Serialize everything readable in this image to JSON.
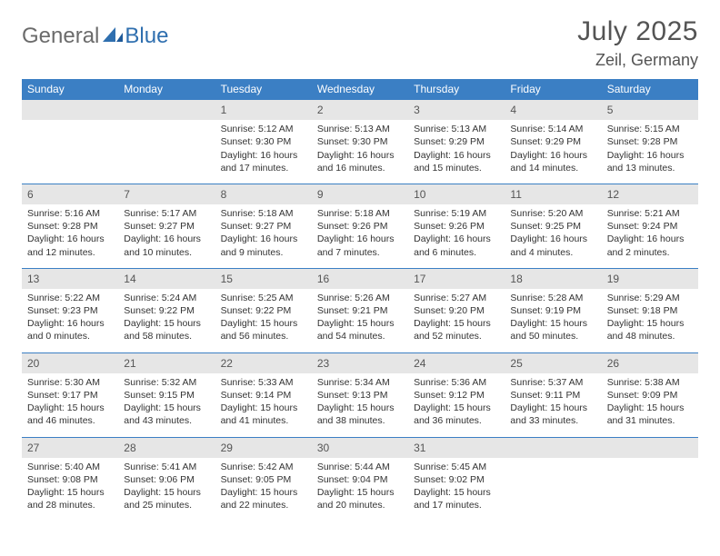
{
  "logo": {
    "text1": "General",
    "text2": "Blue"
  },
  "title": "July 2025",
  "location": "Zeil, Germany",
  "colors": {
    "header_bg": "#3b7fc4",
    "header_text": "#ffffff",
    "daynum_bg": "#e6e6e6",
    "border": "#3b7fc4",
    "logo_gray": "#6b6b6b",
    "logo_blue": "#2f6faf",
    "title_color": "#545454"
  },
  "day_headers": [
    "Sunday",
    "Monday",
    "Tuesday",
    "Wednesday",
    "Thursday",
    "Friday",
    "Saturday"
  ],
  "weeks": [
    [
      {
        "n": "",
        "sr": "",
        "ss": "",
        "dl": ""
      },
      {
        "n": "",
        "sr": "",
        "ss": "",
        "dl": ""
      },
      {
        "n": "1",
        "sr": "Sunrise: 5:12 AM",
        "ss": "Sunset: 9:30 PM",
        "dl": "Daylight: 16 hours and 17 minutes."
      },
      {
        "n": "2",
        "sr": "Sunrise: 5:13 AM",
        "ss": "Sunset: 9:30 PM",
        "dl": "Daylight: 16 hours and 16 minutes."
      },
      {
        "n": "3",
        "sr": "Sunrise: 5:13 AM",
        "ss": "Sunset: 9:29 PM",
        "dl": "Daylight: 16 hours and 15 minutes."
      },
      {
        "n": "4",
        "sr": "Sunrise: 5:14 AM",
        "ss": "Sunset: 9:29 PM",
        "dl": "Daylight: 16 hours and 14 minutes."
      },
      {
        "n": "5",
        "sr": "Sunrise: 5:15 AM",
        "ss": "Sunset: 9:28 PM",
        "dl": "Daylight: 16 hours and 13 minutes."
      }
    ],
    [
      {
        "n": "6",
        "sr": "Sunrise: 5:16 AM",
        "ss": "Sunset: 9:28 PM",
        "dl": "Daylight: 16 hours and 12 minutes."
      },
      {
        "n": "7",
        "sr": "Sunrise: 5:17 AM",
        "ss": "Sunset: 9:27 PM",
        "dl": "Daylight: 16 hours and 10 minutes."
      },
      {
        "n": "8",
        "sr": "Sunrise: 5:18 AM",
        "ss": "Sunset: 9:27 PM",
        "dl": "Daylight: 16 hours and 9 minutes."
      },
      {
        "n": "9",
        "sr": "Sunrise: 5:18 AM",
        "ss": "Sunset: 9:26 PM",
        "dl": "Daylight: 16 hours and 7 minutes."
      },
      {
        "n": "10",
        "sr": "Sunrise: 5:19 AM",
        "ss": "Sunset: 9:26 PM",
        "dl": "Daylight: 16 hours and 6 minutes."
      },
      {
        "n": "11",
        "sr": "Sunrise: 5:20 AM",
        "ss": "Sunset: 9:25 PM",
        "dl": "Daylight: 16 hours and 4 minutes."
      },
      {
        "n": "12",
        "sr": "Sunrise: 5:21 AM",
        "ss": "Sunset: 9:24 PM",
        "dl": "Daylight: 16 hours and 2 minutes."
      }
    ],
    [
      {
        "n": "13",
        "sr": "Sunrise: 5:22 AM",
        "ss": "Sunset: 9:23 PM",
        "dl": "Daylight: 16 hours and 0 minutes."
      },
      {
        "n": "14",
        "sr": "Sunrise: 5:24 AM",
        "ss": "Sunset: 9:22 PM",
        "dl": "Daylight: 15 hours and 58 minutes."
      },
      {
        "n": "15",
        "sr": "Sunrise: 5:25 AM",
        "ss": "Sunset: 9:22 PM",
        "dl": "Daylight: 15 hours and 56 minutes."
      },
      {
        "n": "16",
        "sr": "Sunrise: 5:26 AM",
        "ss": "Sunset: 9:21 PM",
        "dl": "Daylight: 15 hours and 54 minutes."
      },
      {
        "n": "17",
        "sr": "Sunrise: 5:27 AM",
        "ss": "Sunset: 9:20 PM",
        "dl": "Daylight: 15 hours and 52 minutes."
      },
      {
        "n": "18",
        "sr": "Sunrise: 5:28 AM",
        "ss": "Sunset: 9:19 PM",
        "dl": "Daylight: 15 hours and 50 minutes."
      },
      {
        "n": "19",
        "sr": "Sunrise: 5:29 AM",
        "ss": "Sunset: 9:18 PM",
        "dl": "Daylight: 15 hours and 48 minutes."
      }
    ],
    [
      {
        "n": "20",
        "sr": "Sunrise: 5:30 AM",
        "ss": "Sunset: 9:17 PM",
        "dl": "Daylight: 15 hours and 46 minutes."
      },
      {
        "n": "21",
        "sr": "Sunrise: 5:32 AM",
        "ss": "Sunset: 9:15 PM",
        "dl": "Daylight: 15 hours and 43 minutes."
      },
      {
        "n": "22",
        "sr": "Sunrise: 5:33 AM",
        "ss": "Sunset: 9:14 PM",
        "dl": "Daylight: 15 hours and 41 minutes."
      },
      {
        "n": "23",
        "sr": "Sunrise: 5:34 AM",
        "ss": "Sunset: 9:13 PM",
        "dl": "Daylight: 15 hours and 38 minutes."
      },
      {
        "n": "24",
        "sr": "Sunrise: 5:36 AM",
        "ss": "Sunset: 9:12 PM",
        "dl": "Daylight: 15 hours and 36 minutes."
      },
      {
        "n": "25",
        "sr": "Sunrise: 5:37 AM",
        "ss": "Sunset: 9:11 PM",
        "dl": "Daylight: 15 hours and 33 minutes."
      },
      {
        "n": "26",
        "sr": "Sunrise: 5:38 AM",
        "ss": "Sunset: 9:09 PM",
        "dl": "Daylight: 15 hours and 31 minutes."
      }
    ],
    [
      {
        "n": "27",
        "sr": "Sunrise: 5:40 AM",
        "ss": "Sunset: 9:08 PM",
        "dl": "Daylight: 15 hours and 28 minutes."
      },
      {
        "n": "28",
        "sr": "Sunrise: 5:41 AM",
        "ss": "Sunset: 9:06 PM",
        "dl": "Daylight: 15 hours and 25 minutes."
      },
      {
        "n": "29",
        "sr": "Sunrise: 5:42 AM",
        "ss": "Sunset: 9:05 PM",
        "dl": "Daylight: 15 hours and 22 minutes."
      },
      {
        "n": "30",
        "sr": "Sunrise: 5:44 AM",
        "ss": "Sunset: 9:04 PM",
        "dl": "Daylight: 15 hours and 20 minutes."
      },
      {
        "n": "31",
        "sr": "Sunrise: 5:45 AM",
        "ss": "Sunset: 9:02 PM",
        "dl": "Daylight: 15 hours and 17 minutes."
      },
      {
        "n": "",
        "sr": "",
        "ss": "",
        "dl": ""
      },
      {
        "n": "",
        "sr": "",
        "ss": "",
        "dl": ""
      }
    ]
  ]
}
